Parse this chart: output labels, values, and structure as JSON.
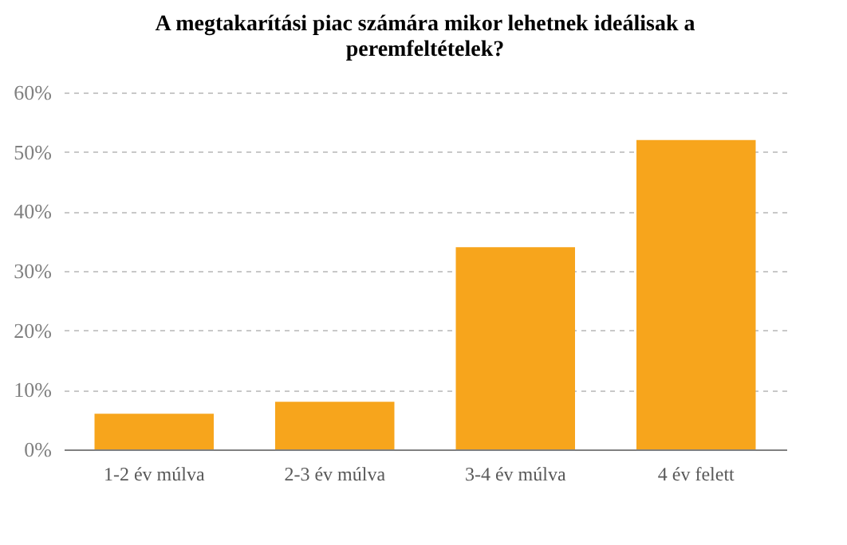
{
  "chart_data": {
    "type": "bar",
    "title": "A megtakarítási piac számára mikor lehetnek ideálisak a peremfeltételek?",
    "categories": [
      "1-2 év múlva",
      "2-3 év múlva",
      "3-4 év múlva",
      "4 év felett"
    ],
    "values": [
      6,
      8,
      34,
      52
    ],
    "color": "#f7a51c",
    "ylim": [
      0,
      60
    ],
    "yticks": [
      {
        "value": 0,
        "label": "0%"
      },
      {
        "value": 10,
        "label": "10%"
      },
      {
        "value": 20,
        "label": "20%"
      },
      {
        "value": 30,
        "label": "30%"
      },
      {
        "value": 40,
        "label": "40%"
      },
      {
        "value": 50,
        "label": "50%"
      },
      {
        "value": 60,
        "label": "60%"
      }
    ],
    "grid": "y"
  }
}
